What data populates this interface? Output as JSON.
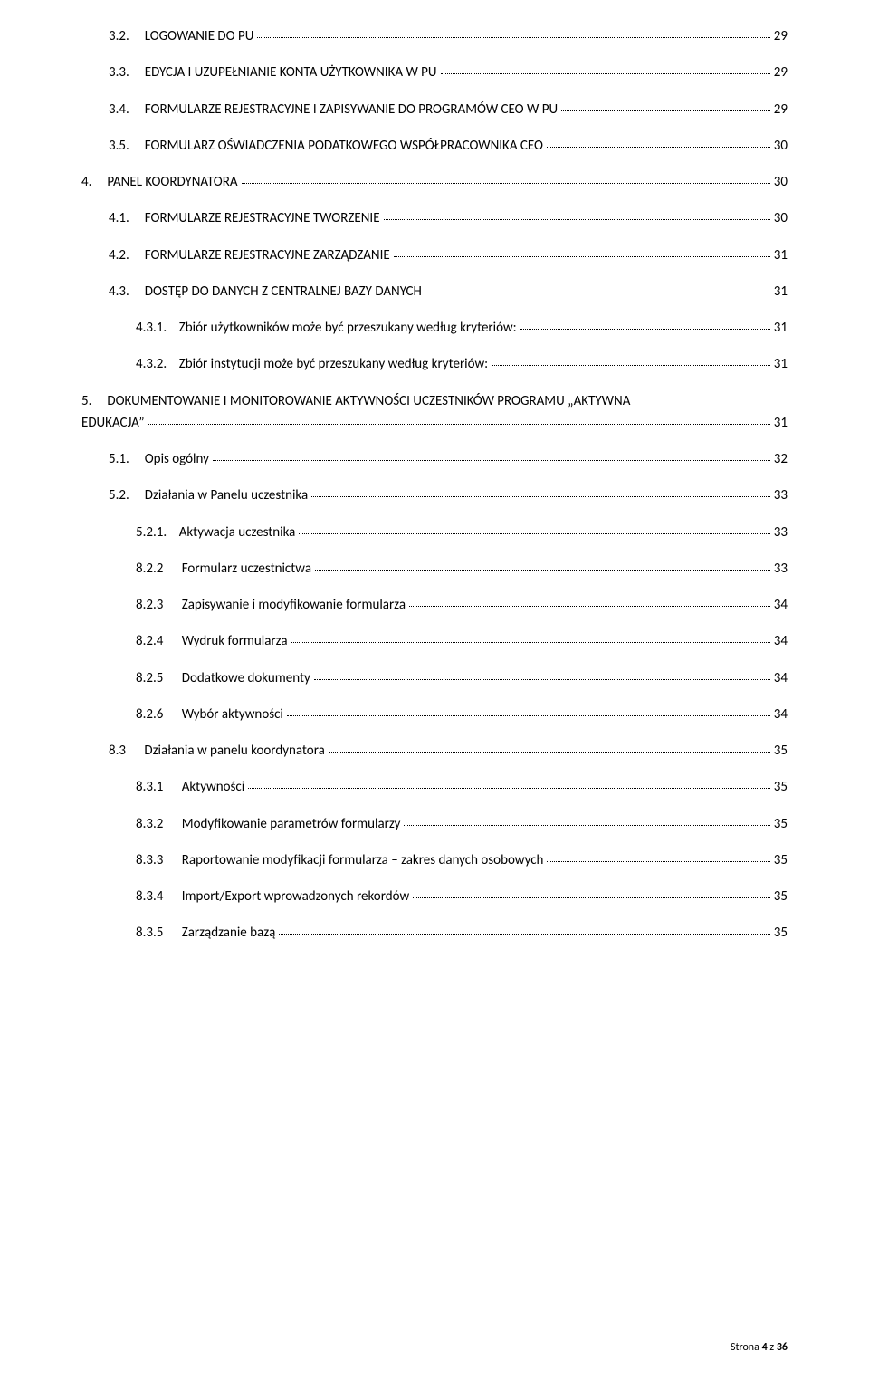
{
  "entries": [
    {
      "indent": 1,
      "num": "3.2.",
      "title": "LOGOWANIE DO PU",
      "page": "29",
      "gapAfterNum": "     "
    },
    {
      "indent": 1,
      "num": "3.3.",
      "title": "EDYCJA I UZUPEŁNIANIE KONTA UŻYTKOWNIKA W PU",
      "page": "29",
      "gapAfterNum": "     "
    },
    {
      "indent": 1,
      "num": "3.4.",
      "title": "FORMULARZE REJESTRACYJNE I ZAPISYWANIE  DO PROGRAMÓW CEO W PU",
      "page": "29",
      "gapAfterNum": "     "
    },
    {
      "indent": 1,
      "num": "3.5.",
      "title": "FORMULARZ OŚWIADCZENIA PODATKOWEGO WSPÓŁPRACOWNIKA CEO",
      "page": "30",
      "gapAfterNum": "     "
    },
    {
      "indent": 0,
      "num": "4.",
      "title": "PANEL KOORDYNATORA",
      "page": "30",
      "gapAfterNum": "     "
    },
    {
      "indent": 1,
      "num": "4.1.",
      "title": "FORMULARZE REJESTRACYJNE TWORZENIE",
      "page": "30",
      "gapAfterNum": "     "
    },
    {
      "indent": 1,
      "num": "4.2.",
      "title": "FORMULARZE REJESTRACYJNE ZARZĄDZANIE",
      "page": "31",
      "gapAfterNum": "     "
    },
    {
      "indent": 1,
      "num": "4.3.",
      "title": "DOSTĘP DO DANYCH Z CENTRALNEJ BAZY DANYCH",
      "page": "31",
      "gapAfterNum": "     "
    },
    {
      "indent": 2,
      "num": "4.3.1.",
      "title": "Zbiór użytkowników może być przeszukany według kryteriów:",
      "page": "31",
      "gapAfterNum": "    "
    },
    {
      "indent": 2,
      "num": "4.3.2.",
      "title": "Zbiór instytucji może być przeszukany według kryteriów:",
      "page": "31",
      "gapAfterNum": "    "
    },
    {
      "indent": 0,
      "num": "5.",
      "title_line1": "DOKUMENTOWANIE I MONITOROWANIE AKTYWNOŚCI UCZESTNIKÓW PROGRAMU „AKTYWNA",
      "title_line2": "EDUKACJA”",
      "page": "31",
      "gapAfterNum": "     ",
      "wrap": true
    },
    {
      "indent": 1,
      "num": "5.1.",
      "title": "Opis ogólny",
      "page": "32",
      "gapAfterNum": "     "
    },
    {
      "indent": 1,
      "num": "5.2.",
      "title": "Działania w Panelu uczestnika",
      "page": "33",
      "gapAfterNum": "     "
    },
    {
      "indent": 2,
      "num": "5.2.1.",
      "title": "Aktywacja  uczestnika",
      "page": "33",
      "gapAfterNum": "    "
    },
    {
      "indent": 2,
      "num": "8.2.2",
      "title": "Formularz uczestnictwa",
      "page": "33",
      "gapAfterNum": "      "
    },
    {
      "indent": 2,
      "num": "8.2.3",
      "title": "Zapisywanie i modyfikowanie formularza",
      "page": "34",
      "gapAfterNum": "      "
    },
    {
      "indent": 2,
      "num": "8.2.4",
      "title": "Wydruk formularza",
      "page": "34",
      "gapAfterNum": "      "
    },
    {
      "indent": 2,
      "num": "8.2.5",
      "title": "Dodatkowe dokumenty",
      "page": "34",
      "gapAfterNum": "      "
    },
    {
      "indent": 2,
      "num": "8.2.6",
      "title": "Wybór aktywności",
      "page": "34",
      "gapAfterNum": "      "
    },
    {
      "indent": 1,
      "num": "8.3",
      "title": "Działania w panelu koordynatora",
      "page": "35",
      "gapAfterNum": "      "
    },
    {
      "indent": 2,
      "num": "8.3.1",
      "title": "Aktywności",
      "page": "35",
      "gapAfterNum": "      "
    },
    {
      "indent": 2,
      "num": "8.3.2",
      "title": "Modyfikowanie parametrów formularzy",
      "page": "35",
      "gapAfterNum": "      "
    },
    {
      "indent": 2,
      "num": "8.3.3",
      "title": "Raportowanie modyfikacji formularza – zakres danych osobowych",
      "page": "35",
      "gapAfterNum": "      "
    },
    {
      "indent": 2,
      "num": "8.3.4",
      "title": "Import/Export wprowadzonych rekordów",
      "page": "35",
      "gapAfterNum": "      "
    },
    {
      "indent": 2,
      "num": "8.3.5",
      "title": "Zarządzanie bazą",
      "page": "35",
      "gapAfterNum": "      "
    }
  ],
  "footer": {
    "label": "Strona ",
    "current": "4",
    "sep": " z ",
    "total": "36"
  }
}
